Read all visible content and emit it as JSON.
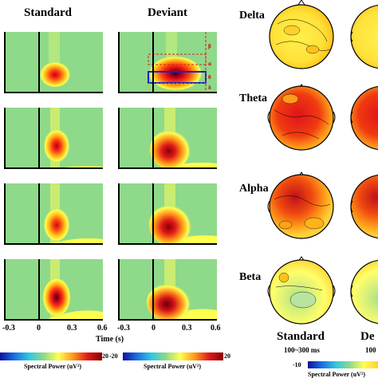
{
  "columns": {
    "standard": "Standard",
    "deviant": "Deviant"
  },
  "bands": [
    "Delta",
    "Theta",
    "Alpha",
    "Beta"
  ],
  "band_markers": [
    "β",
    "α",
    "θ",
    "δ"
  ],
  "time_axis": {
    "ticks": [
      "-0.3",
      "0",
      "0.3",
      "0.6"
    ],
    "label": "Time (s)"
  },
  "colorbars": [
    {
      "min": "-20",
      "max": "20",
      "label": "Spectral Power (uV²)"
    },
    {
      "min": "-20",
      "max": "20",
      "label": "Spectral Power (uV²)"
    },
    {
      "min": "-10",
      "max": "",
      "label": "Spectral Power (uV²)"
    }
  ],
  "topo": {
    "caption_standard": "Standard",
    "caption_deviant": "De",
    "sub_standard": "100~300 ms",
    "sub_deviant": "100"
  },
  "colors": {
    "background": "#8fd98a",
    "yellow": "#ffff3a",
    "orange": "#ff9a1a",
    "red": "#e0141a",
    "darkred": "#8a0000",
    "blue": "#1b22c8"
  }
}
